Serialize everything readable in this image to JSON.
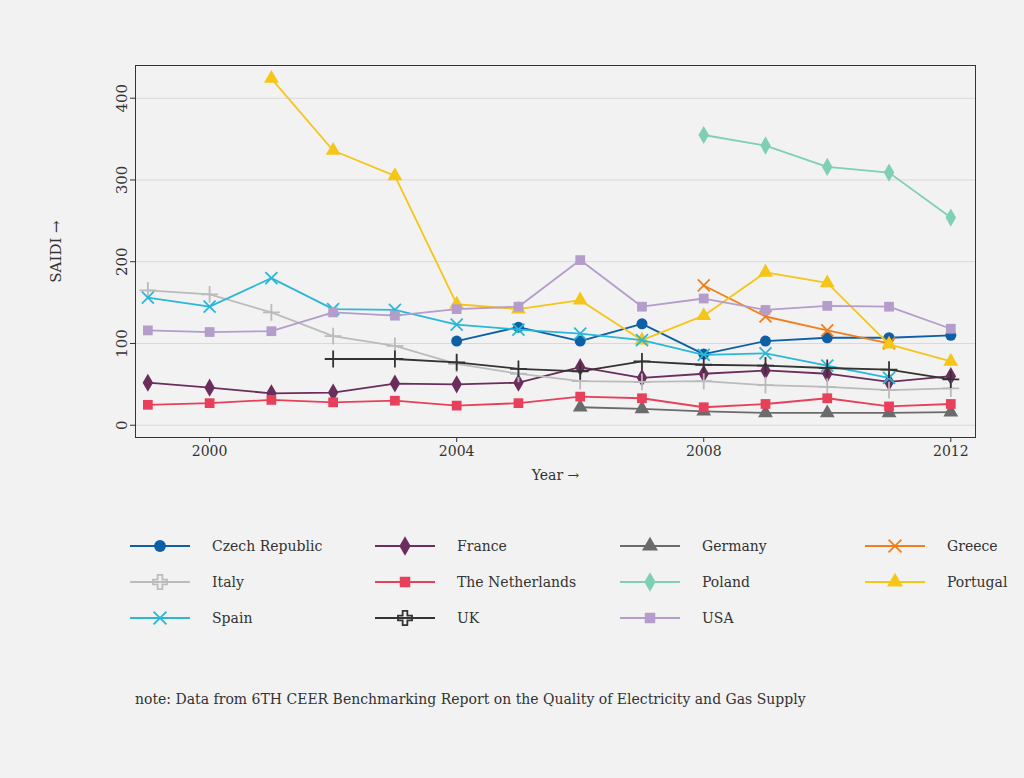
{
  "chart_data": {
    "type": "line",
    "x_label": "Year",
    "y_label": "SAIDI",
    "caption": "note: Data from 6TH CEER Benchmarking Report on the Quality of Electricity and Gas Supply",
    "x": [
      1999,
      2000,
      2001,
      2002,
      2003,
      2004,
      2005,
      2006,
      2007,
      2008,
      2009,
      2010,
      2011,
      2012
    ],
    "xlim": [
      1998.8,
      2012.4
    ],
    "xticks": [
      2000,
      2004,
      2008,
      2012
    ],
    "ylim": [
      -15,
      440
    ],
    "yticks": [
      0,
      100,
      200,
      300,
      400
    ],
    "grid": true,
    "legend": "bottom",
    "series": [
      {
        "name": "Czech Republic",
        "color": "#0d5fa6",
        "marker": "circle",
        "values": [
          null,
          null,
          null,
          null,
          null,
          103,
          120,
          103,
          124,
          87,
          103,
          107,
          107,
          110
        ]
      },
      {
        "name": "France",
        "color": "#6b2d5c",
        "marker": "diamond",
        "values": [
          52,
          46,
          39,
          40,
          51,
          50,
          52,
          71,
          58,
          63,
          67,
          63,
          53,
          60
        ]
      },
      {
        "name": "Germany",
        "color": "#6b6b6b",
        "marker": "triangle",
        "values": [
          null,
          null,
          null,
          null,
          null,
          null,
          null,
          22,
          20,
          17,
          15,
          15,
          15,
          16
        ]
      },
      {
        "name": "Greece",
        "color": "#f07f1e",
        "marker": "times",
        "values": [
          null,
          null,
          null,
          null,
          null,
          null,
          null,
          null,
          null,
          171,
          133,
          116,
          100,
          null
        ]
      },
      {
        "name": "Italy",
        "color": "#bbbbbb",
        "marker": "plus",
        "values": [
          165,
          160,
          138,
          109,
          97,
          75,
          63,
          54,
          53,
          54,
          49,
          47,
          43,
          45
        ]
      },
      {
        "name": "The Netherlands",
        "color": "#e8405a",
        "marker": "square",
        "values": [
          25,
          27,
          31,
          28,
          30,
          24,
          27,
          35,
          33,
          22,
          26,
          33,
          23,
          26
        ]
      },
      {
        "name": "Poland",
        "color": "#7ecfb5",
        "marker": "diamond",
        "values": [
          null,
          null,
          null,
          null,
          null,
          null,
          null,
          null,
          null,
          355,
          342,
          316,
          309,
          254
        ]
      },
      {
        "name": "Portugal",
        "color": "#f5c518",
        "marker": "triangle",
        "values": [
          null,
          null,
          424,
          336,
          305,
          148,
          142,
          153,
          104,
          134,
          187,
          174,
          99,
          78
        ]
      },
      {
        "name": "Spain",
        "color": "#2ab7d8",
        "marker": "times",
        "values": [
          156,
          145,
          180,
          142,
          141,
          123,
          117,
          112,
          104,
          86,
          88,
          73,
          58,
          null
        ]
      },
      {
        "name": "UK",
        "color": "#333333",
        "marker": "plus",
        "values": [
          null,
          null,
          null,
          81,
          81,
          77,
          69,
          66,
          78,
          74,
          73,
          70,
          68,
          56
        ]
      },
      {
        "name": "USA",
        "color": "#b49ccb",
        "marker": "square",
        "values": [
          116,
          114,
          115,
          138,
          134,
          142,
          145,
          202,
          145,
          155,
          141,
          146,
          145,
          118
        ]
      }
    ]
  }
}
